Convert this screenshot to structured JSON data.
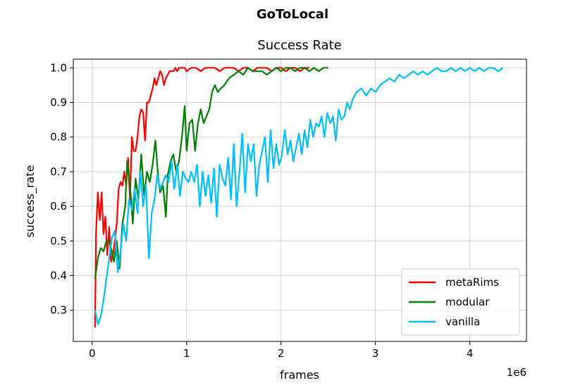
{
  "chart_data": {
    "type": "line",
    "suptitle": "GoToLocal",
    "title": "Success Rate",
    "xlabel": "frames",
    "ylabel": "success_rate",
    "x_offset_text": "1e6",
    "x_ticks": [
      0,
      1,
      2,
      3,
      4
    ],
    "x_tick_labels": [
      "0",
      "1",
      "2",
      "3",
      "4"
    ],
    "y_ticks": [
      0.3,
      0.4,
      0.5,
      0.6,
      0.7,
      0.8,
      0.9,
      1.0
    ],
    "y_tick_labels": [
      "0.3",
      "0.4",
      "0.5",
      "0.6",
      "0.7",
      "0.8",
      "0.9",
      "1.0"
    ],
    "xlim": [
      -0.2,
      4.6
    ],
    "ylim": [
      0.21,
      1.025
    ],
    "grid": true,
    "legend_position": "lower-right",
    "series": [
      {
        "name": "metaRims",
        "color": "#ff0000",
        "x": [
          0.03,
          0.04,
          0.06,
          0.08,
          0.1,
          0.12,
          0.14,
          0.16,
          0.18,
          0.2,
          0.22,
          0.24,
          0.26,
          0.28,
          0.3,
          0.32,
          0.34,
          0.36,
          0.38,
          0.4,
          0.42,
          0.44,
          0.46,
          0.48,
          0.5,
          0.52,
          0.54,
          0.56,
          0.58,
          0.6,
          0.62,
          0.64,
          0.66,
          0.68,
          0.7,
          0.72,
          0.74,
          0.76,
          0.78,
          0.8,
          0.82,
          0.84,
          0.86,
          0.88,
          0.9,
          0.92,
          0.95,
          0.98,
          1.0,
          1.05,
          1.1,
          1.15,
          1.2,
          1.25,
          1.3,
          1.35,
          1.4,
          1.45,
          1.5,
          1.55,
          1.6,
          1.65,
          1.7,
          1.75,
          1.8,
          1.85,
          1.9,
          1.95,
          2.0,
          2.05,
          2.1,
          2.15,
          2.2,
          2.25,
          2.3
        ],
        "y": [
          0.25,
          0.52,
          0.64,
          0.56,
          0.64,
          0.52,
          0.57,
          0.46,
          0.54,
          0.44,
          0.46,
          0.5,
          0.55,
          0.65,
          0.67,
          0.66,
          0.7,
          0.66,
          0.74,
          0.62,
          0.8,
          0.76,
          0.76,
          0.8,
          0.86,
          0.88,
          0.87,
          0.79,
          0.9,
          0.9,
          0.92,
          0.94,
          0.97,
          0.95,
          0.97,
          0.99,
          0.98,
          0.95,
          0.97,
          0.98,
          0.99,
          0.99,
          0.99,
          1.0,
          0.99,
          1.0,
          1.0,
          1.0,
          0.99,
          1.0,
          1.0,
          0.99,
          1.0,
          1.0,
          1.0,
          0.99,
          1.0,
          1.0,
          1.0,
          0.99,
          1.0,
          1.0,
          0.99,
          1.0,
          1.0,
          1.0,
          0.99,
          1.0,
          1.0,
          0.99,
          1.0,
          1.0,
          0.99,
          1.0,
          1.0
        ]
      },
      {
        "name": "modular",
        "color": "#008000",
        "x": [
          0.03,
          0.06,
          0.09,
          0.12,
          0.15,
          0.18,
          0.2,
          0.23,
          0.26,
          0.29,
          0.32,
          0.35,
          0.37,
          0.4,
          0.43,
          0.46,
          0.49,
          0.52,
          0.55,
          0.58,
          0.61,
          0.64,
          0.67,
          0.7,
          0.72,
          0.75,
          0.78,
          0.8,
          0.83,
          0.86,
          0.89,
          0.92,
          0.95,
          0.98,
          1.0,
          1.03,
          1.06,
          1.09,
          1.12,
          1.15,
          1.18,
          1.21,
          1.24,
          1.27,
          1.3,
          1.33,
          1.36,
          1.4,
          1.45,
          1.5,
          1.55,
          1.6,
          1.65,
          1.7,
          1.75,
          1.8,
          1.85,
          1.9,
          1.95,
          2.0,
          2.05,
          2.1,
          2.15,
          2.2,
          2.25,
          2.3,
          2.35,
          2.4,
          2.45,
          2.5
        ],
        "y": [
          0.39,
          0.45,
          0.48,
          0.47,
          0.5,
          0.5,
          0.48,
          0.44,
          0.5,
          0.42,
          0.55,
          0.6,
          0.73,
          0.66,
          0.55,
          0.68,
          0.62,
          0.75,
          0.63,
          0.7,
          0.67,
          0.72,
          0.79,
          0.68,
          0.64,
          0.66,
          0.57,
          0.69,
          0.73,
          0.75,
          0.7,
          0.73,
          0.8,
          0.89,
          0.76,
          0.84,
          0.85,
          0.76,
          0.84,
          0.88,
          0.84,
          0.86,
          0.88,
          0.93,
          0.95,
          0.93,
          0.94,
          0.95,
          0.97,
          0.98,
          0.99,
          0.98,
          1.0,
          0.99,
          0.99,
          0.99,
          0.98,
          0.99,
          1.0,
          0.99,
          1.0,
          1.0,
          0.99,
          1.0,
          1.0,
          0.99,
          1.0,
          0.99,
          1.0,
          1.0
        ]
      },
      {
        "name": "vanilla",
        "color": "#00bfff",
        "x": [
          0.03,
          0.06,
          0.09,
          0.12,
          0.15,
          0.18,
          0.21,
          0.24,
          0.27,
          0.3,
          0.33,
          0.36,
          0.39,
          0.42,
          0.45,
          0.48,
          0.51,
          0.54,
          0.57,
          0.6,
          0.63,
          0.66,
          0.69,
          0.72,
          0.75,
          0.78,
          0.81,
          0.84,
          0.87,
          0.9,
          0.93,
          0.96,
          0.99,
          1.02,
          1.05,
          1.08,
          1.11,
          1.14,
          1.17,
          1.2,
          1.23,
          1.26,
          1.29,
          1.32,
          1.35,
          1.38,
          1.41,
          1.44,
          1.47,
          1.5,
          1.53,
          1.56,
          1.59,
          1.62,
          1.65,
          1.68,
          1.71,
          1.74,
          1.77,
          1.8,
          1.83,
          1.86,
          1.89,
          1.92,
          1.95,
          1.98,
          2.01,
          2.04,
          2.07,
          2.1,
          2.13,
          2.16,
          2.19,
          2.22,
          2.25,
          2.28,
          2.31,
          2.34,
          2.37,
          2.4,
          2.43,
          2.46,
          2.49,
          2.52,
          2.55,
          2.58,
          2.61,
          2.64,
          2.67,
          2.7,
          2.73,
          2.76,
          2.8,
          2.85,
          2.9,
          2.95,
          3.0,
          3.05,
          3.1,
          3.15,
          3.2,
          3.25,
          3.3,
          3.35,
          3.4,
          3.45,
          3.5,
          3.55,
          3.6,
          3.65,
          3.7,
          3.75,
          3.8,
          3.85,
          3.9,
          3.95,
          4.0,
          4.05,
          4.1,
          4.15,
          4.2,
          4.25,
          4.3,
          4.35
        ],
        "y": [
          0.3,
          0.26,
          0.28,
          0.33,
          0.39,
          0.45,
          0.51,
          0.53,
          0.41,
          0.47,
          0.55,
          0.5,
          0.62,
          0.59,
          0.65,
          0.58,
          0.7,
          0.6,
          0.66,
          0.45,
          0.58,
          0.62,
          0.69,
          0.65,
          0.67,
          0.69,
          0.67,
          0.73,
          0.65,
          0.72,
          0.63,
          0.7,
          0.68,
          0.67,
          0.7,
          0.67,
          0.72,
          0.6,
          0.7,
          0.63,
          0.69,
          0.61,
          0.71,
          0.57,
          0.72,
          0.68,
          0.66,
          0.74,
          0.62,
          0.78,
          0.6,
          0.7,
          0.81,
          0.64,
          0.78,
          0.73,
          0.78,
          0.63,
          0.72,
          0.76,
          0.8,
          0.67,
          0.82,
          0.71,
          0.78,
          0.72,
          0.75,
          0.82,
          0.75,
          0.79,
          0.73,
          0.77,
          0.81,
          0.75,
          0.82,
          0.77,
          0.85,
          0.8,
          0.84,
          0.83,
          0.86,
          0.8,
          0.87,
          0.84,
          0.86,
          0.79,
          0.88,
          0.85,
          0.86,
          0.9,
          0.88,
          0.91,
          0.93,
          0.94,
          0.92,
          0.94,
          0.93,
          0.95,
          0.96,
          0.97,
          0.96,
          0.98,
          0.97,
          0.98,
          0.99,
          0.98,
          0.99,
          0.98,
          0.99,
          1.0,
          0.99,
          0.99,
          1.0,
          0.99,
          1.0,
          0.99,
          1.0,
          0.99,
          1.0,
          0.99,
          1.0,
          1.0,
          0.99,
          1.0
        ]
      }
    ]
  }
}
